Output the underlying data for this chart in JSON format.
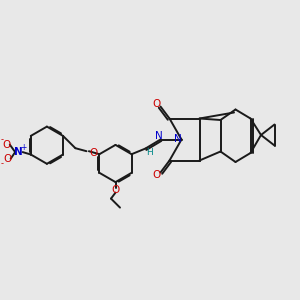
{
  "bg_color": "#e8e8e8",
  "bond_color": "#1a1a1a",
  "bond_width": 1.4,
  "fig_size": [
    3.0,
    3.0
  ],
  "dpi": 100,
  "N_blue": "#0000cc",
  "O_red": "#cc0000",
  "H_teal": "#008888",
  "xlim": [
    0,
    10
  ],
  "ylim": [
    0,
    10
  ]
}
